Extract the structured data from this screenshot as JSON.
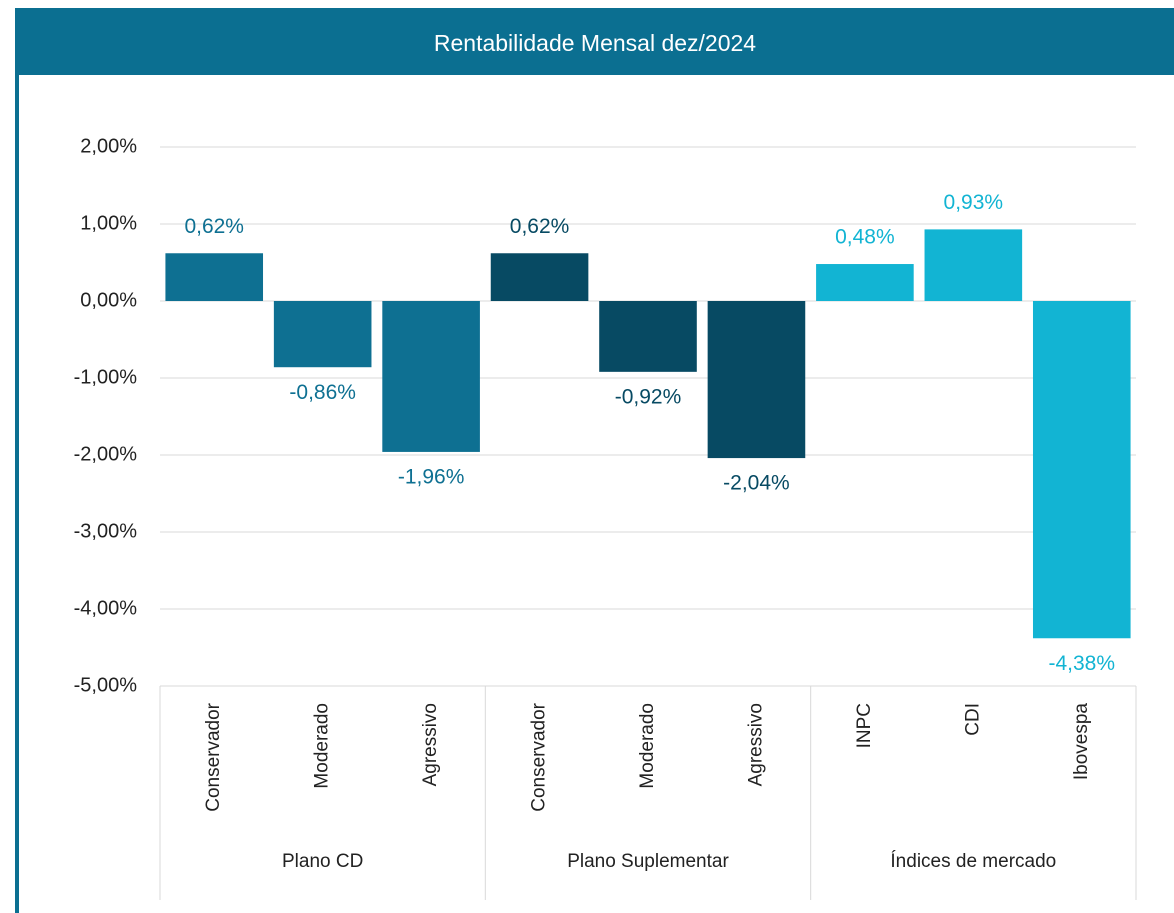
{
  "chart_data": {
    "type": "bar",
    "title": "Rentabilidade Mensal dez/2024",
    "groups": [
      {
        "name": "Plano CD",
        "color": "#0e7092",
        "categories": [
          "Conservador",
          "Moderado",
          "Agressivo"
        ],
        "values": [
          0.62,
          -0.86,
          -1.96
        ],
        "value_labels": [
          "0,62%",
          "-0,86%",
          "-1,96%"
        ]
      },
      {
        "name": "Plano Suplementar",
        "color": "#074a63",
        "categories": [
          "Conservador",
          "Moderado",
          "Agressivo"
        ],
        "values": [
          0.62,
          -0.92,
          -2.04
        ],
        "value_labels": [
          "0,62%",
          "-0,92%",
          "-2,04%"
        ]
      },
      {
        "name": "Índices de mercado",
        "color": "#12b4d3",
        "categories": [
          "INPC",
          "CDI",
          "Ibovespa"
        ],
        "values": [
          0.48,
          0.93,
          -4.38
        ],
        "value_labels": [
          "0,48%",
          "0,93%",
          "-4,38%"
        ]
      }
    ],
    "ylim": [
      -5,
      2
    ],
    "yticks": [
      {
        "value": 2,
        "label": "2,00%"
      },
      {
        "value": 1,
        "label": "1,00%"
      },
      {
        "value": 0,
        "label": "0,00%"
      },
      {
        "value": -1,
        "label": "-1,00%"
      },
      {
        "value": -2,
        "label": "-2,00%"
      },
      {
        "value": -3,
        "label": "-3,00%"
      },
      {
        "value": -4,
        "label": "-4,00%"
      },
      {
        "value": -5,
        "label": "-5,00%"
      }
    ],
    "grid": true
  }
}
